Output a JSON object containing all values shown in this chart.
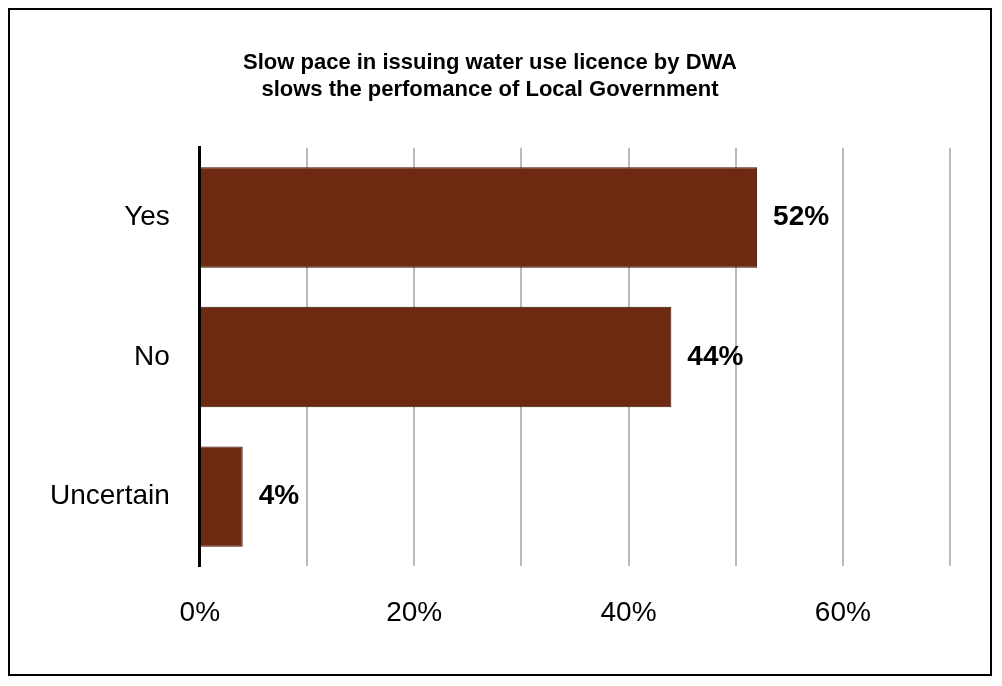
{
  "chart_data": {
    "type": "bar",
    "orientation": "horizontal",
    "title": "Slow pace in issuing water use licence by DWA\nslows the perfomance of Local Government",
    "categories": [
      "Yes",
      "No",
      "Uncertain"
    ],
    "values": [
      52,
      44,
      4
    ],
    "color": "#6e2a10",
    "value_labels": [
      "52%",
      "44%",
      "4%"
    ],
    "xlim": [
      0,
      70
    ],
    "xticks": [
      {
        "value": 0,
        "label": "0%"
      },
      {
        "value": 10,
        "label": null
      },
      {
        "value": 20,
        "label": "20%"
      },
      {
        "value": 30,
        "label": null
      },
      {
        "value": 40,
        "label": "40%"
      },
      {
        "value": 50,
        "label": null
      },
      {
        "value": 60,
        "label": "60%"
      },
      {
        "value": 70,
        "label": null
      }
    ],
    "grid": "x",
    "legend": false
  }
}
